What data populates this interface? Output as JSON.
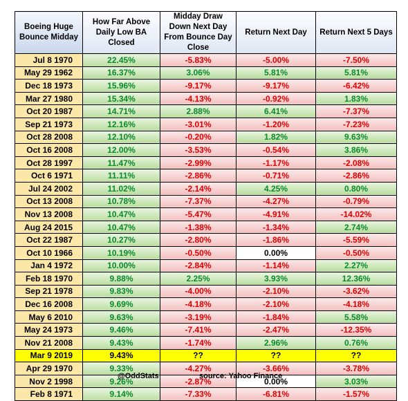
{
  "headers": [
    "Boeing Huge Bounce Midday",
    "How Far Above Daily Low BA Closed",
    "Midday Draw Down Next Day From Bounce Day Close",
    "Return Next Day",
    "Return Next 5 Days"
  ],
  "rows": [
    {
      "date": "Jul 8 1970",
      "above": "22.45%",
      "drawdown": "-5.83%",
      "next_day": "-5.00%",
      "next_5": "-7.50%"
    },
    {
      "date": "May 29 1962",
      "above": "16.37%",
      "drawdown": "3.06%",
      "next_day": "5.81%",
      "next_5": "5.81%"
    },
    {
      "date": "Dec 18 1973",
      "above": "15.96%",
      "drawdown": "-9.17%",
      "next_day": "-9.17%",
      "next_5": "-6.42%"
    },
    {
      "date": "Mar 27 1980",
      "above": "15.34%",
      "drawdown": "-4.13%",
      "next_day": "-0.92%",
      "next_5": "1.83%"
    },
    {
      "date": "Oct 20 1987",
      "above": "14.71%",
      "drawdown": "2.88%",
      "next_day": "6.41%",
      "next_5": "-7.37%"
    },
    {
      "date": "Sep 21 1973",
      "above": "12.16%",
      "drawdown": "-3.01%",
      "next_day": "-1.20%",
      "next_5": "-7.23%"
    },
    {
      "date": "Oct 28 2008",
      "above": "12.10%",
      "drawdown": "-0.20%",
      "next_day": "1.82%",
      "next_5": "9.63%"
    },
    {
      "date": "Oct 16 2008",
      "above": "12.00%",
      "drawdown": "-3.53%",
      "next_day": "-0.54%",
      "next_5": "3.86%"
    },
    {
      "date": "Oct 28 1997",
      "above": "11.47%",
      "drawdown": "-2.99%",
      "next_day": "-1.17%",
      "next_5": "-2.08%"
    },
    {
      "date": "Oct 6 1971",
      "above": "11.11%",
      "drawdown": "-2.86%",
      "next_day": "-0.71%",
      "next_5": "-2.86%"
    },
    {
      "date": "Jul 24 2002",
      "above": "11.02%",
      "drawdown": "-2.14%",
      "next_day": "4.25%",
      "next_5": "0.80%"
    },
    {
      "date": "Oct 13 2008",
      "above": "10.78%",
      "drawdown": "-7.37%",
      "next_day": "-4.27%",
      "next_5": "-0.79%"
    },
    {
      "date": "Nov 13 2008",
      "above": "10.47%",
      "drawdown": "-5.47%",
      "next_day": "-4.91%",
      "next_5": "-14.02%"
    },
    {
      "date": "Aug 24 2015",
      "above": "10.47%",
      "drawdown": "-1.38%",
      "next_day": "-1.34%",
      "next_5": "2.74%"
    },
    {
      "date": "Oct 22 1987",
      "above": "10.27%",
      "drawdown": "-2.80%",
      "next_day": "-1.86%",
      "next_5": "-5.59%"
    },
    {
      "date": "Oct 10 1966",
      "above": "10.19%",
      "drawdown": "-0.50%",
      "next_day": "0.00%",
      "next_5": "-0.50%"
    },
    {
      "date": "Jan 4 1972",
      "above": "10.00%",
      "drawdown": "-2.84%",
      "next_day": "-1.14%",
      "next_5": "2.27%"
    },
    {
      "date": "Feb 18 1970",
      "above": "9.88%",
      "drawdown": "2.25%",
      "next_day": "3.93%",
      "next_5": "12.36%"
    },
    {
      "date": "Sep 21 1978",
      "above": "9.83%",
      "drawdown": "-4.00%",
      "next_day": "-2.10%",
      "next_5": "-3.62%"
    },
    {
      "date": "Dec 16 2008",
      "above": "9.69%",
      "drawdown": "-4.18%",
      "next_day": "-2.10%",
      "next_5": "-4.18%"
    },
    {
      "date": "May 6 2010",
      "above": "9.63%",
      "drawdown": "-3.19%",
      "next_day": "-1.84%",
      "next_5": "5.58%"
    },
    {
      "date": "May 24 1973",
      "above": "9.46%",
      "drawdown": "-7.41%",
      "next_day": "-2.47%",
      "next_5": "-12.35%"
    },
    {
      "date": "Nov 21 2008",
      "above": "9.43%",
      "drawdown": "-1.74%",
      "next_day": "2.96%",
      "next_5": "0.76%"
    },
    {
      "date": "Mar 9 2019",
      "above": "9.43%",
      "drawdown": "??",
      "next_day": "??",
      "next_5": "??",
      "highlight": true
    },
    {
      "date": "Apr 29 1970",
      "above": "9.33%",
      "drawdown": "-4.27%",
      "next_day": "-3.66%",
      "next_5": "-3.78%"
    },
    {
      "date": "Nov 2 1998",
      "above": "9.26%",
      "drawdown": "-2.87%",
      "next_day": "0.00%",
      "next_5": "3.03%"
    },
    {
      "date": "Feb 8 1971",
      "above": "9.14%",
      "drawdown": "-7.33%",
      "next_day": "-6.81%",
      "next_5": "-1.57%"
    }
  ],
  "footer": {
    "handle": "@OddStats",
    "source": "source: Yahoo Finance"
  },
  "colors": {
    "positive": "#0a8a2a",
    "negative": "#e00000",
    "date_bg": "#fbe7a8",
    "highlight": "#ffff00"
  }
}
